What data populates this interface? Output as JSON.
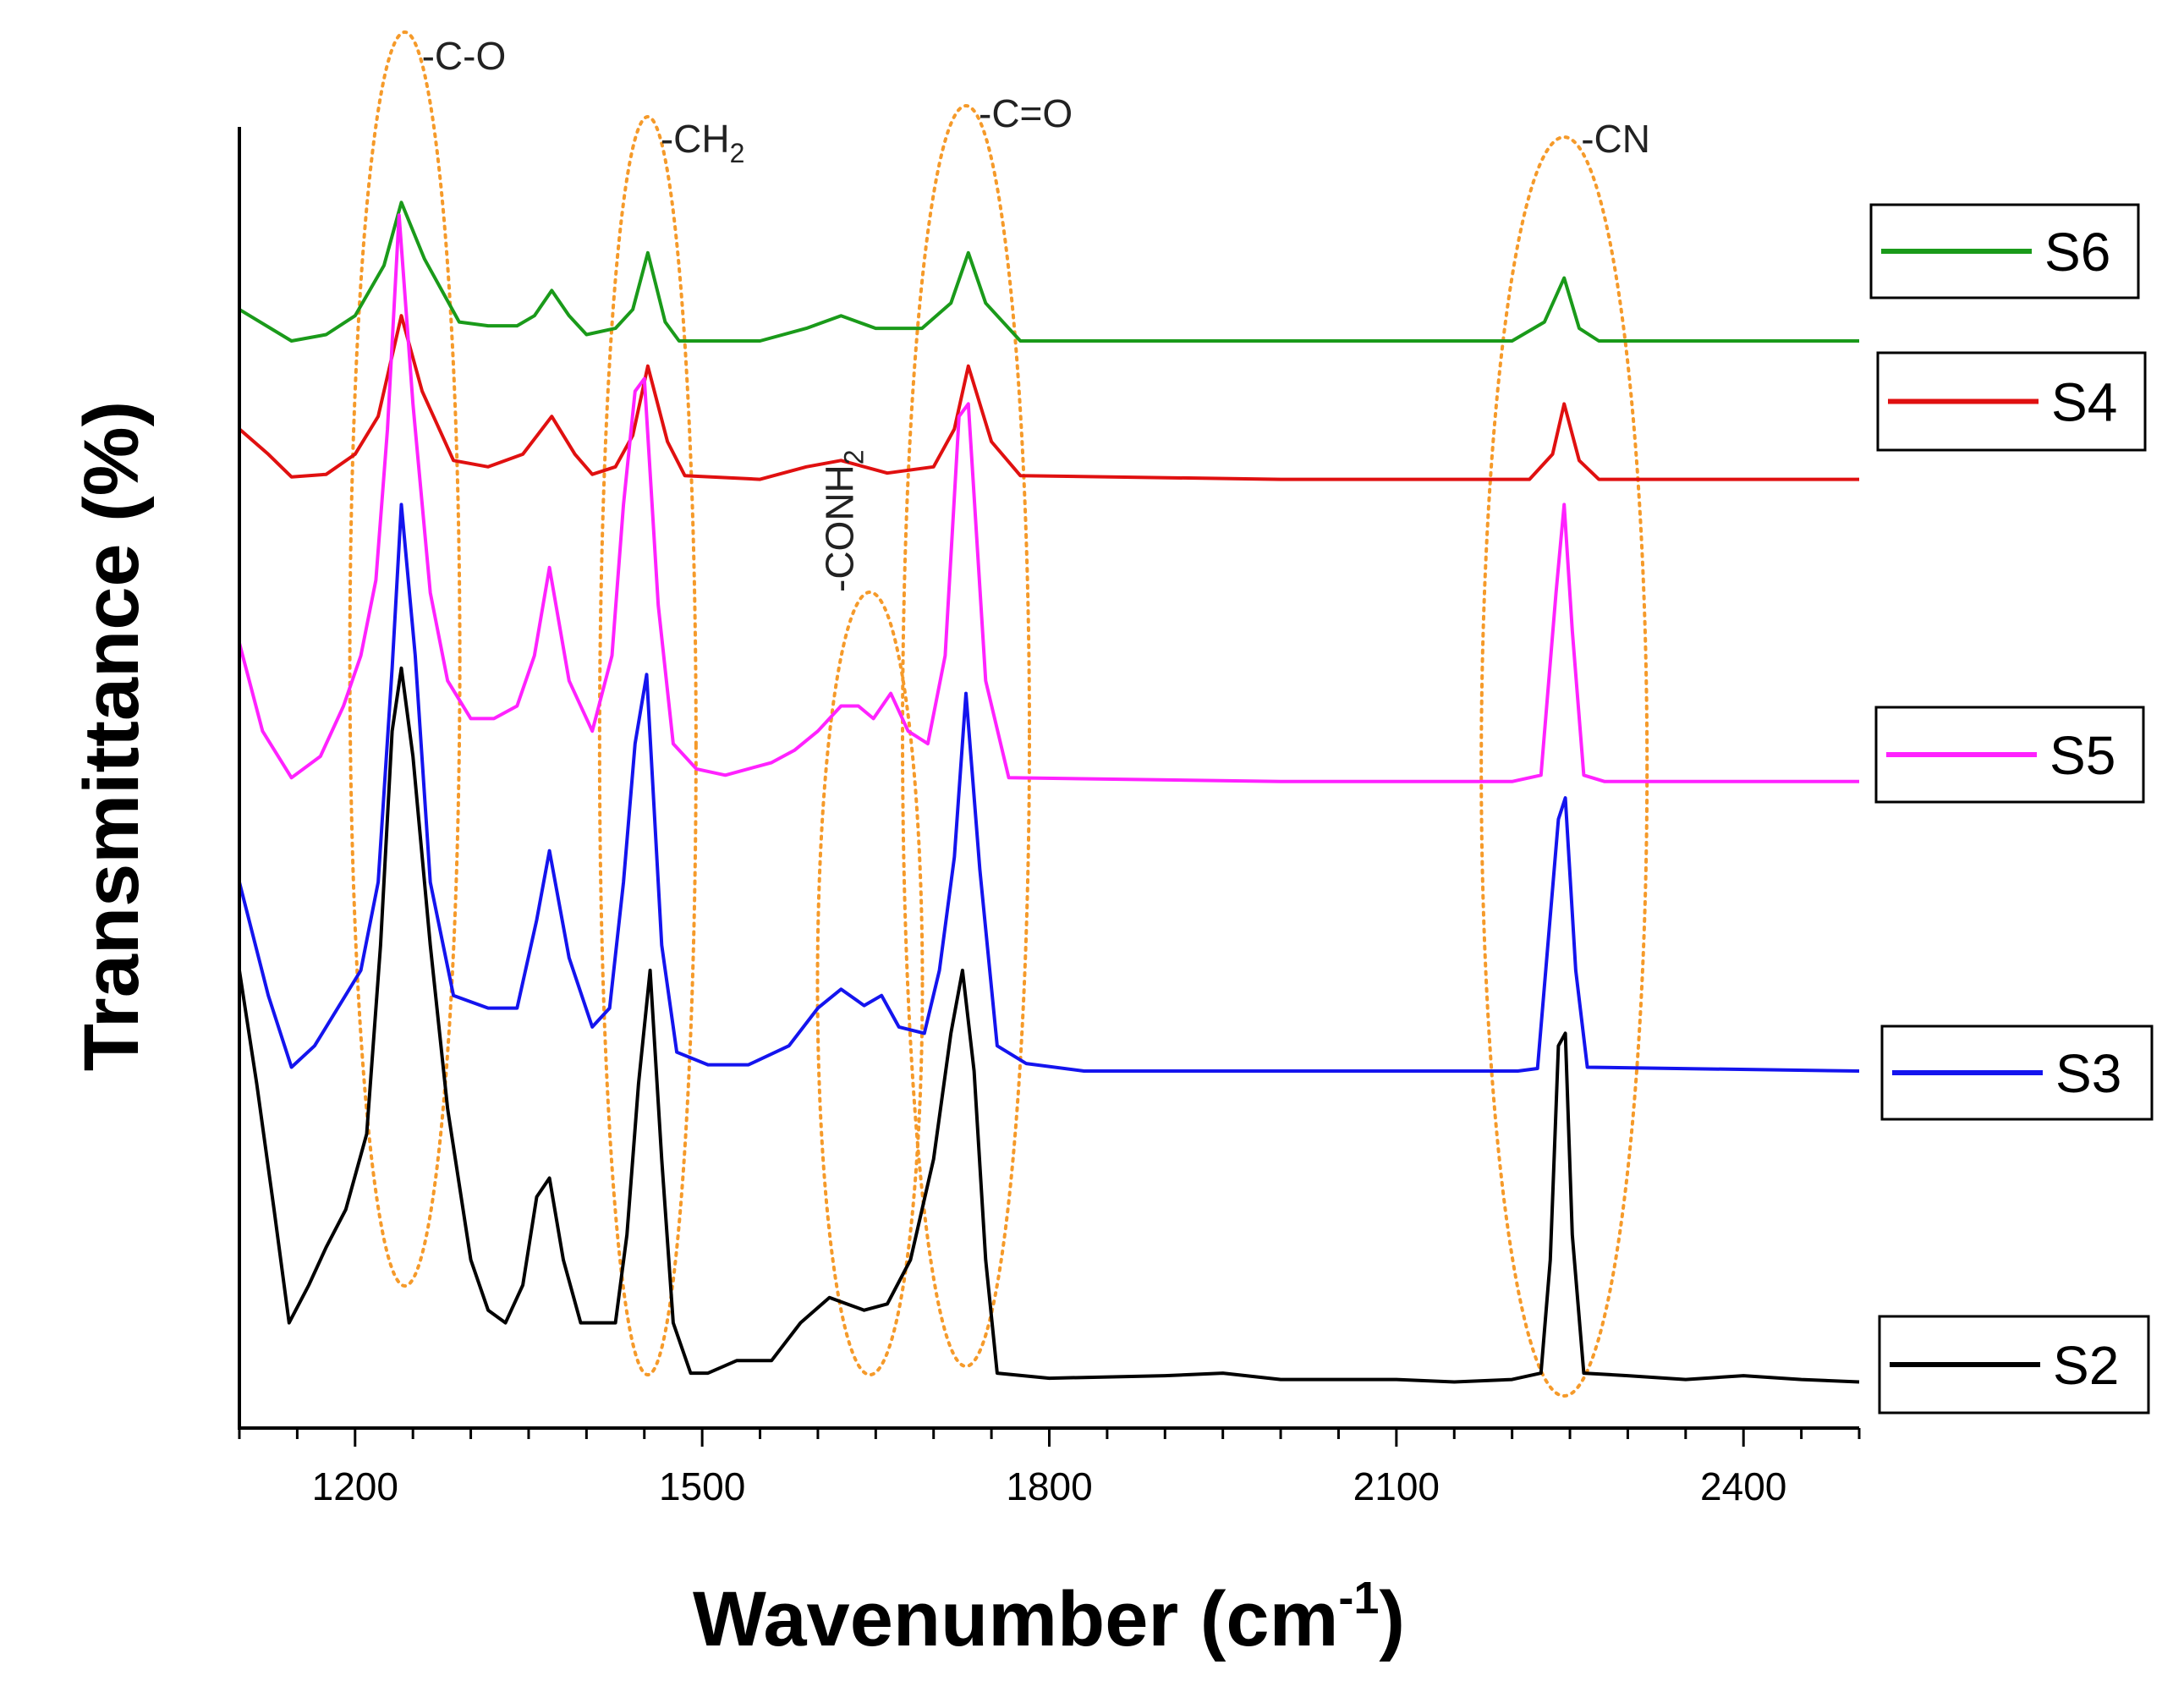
{
  "chart_data": {
    "type": "line",
    "title": "",
    "xlabel": "Wavenumber (cm",
    "xlabel_sup": "-1",
    "xlabel_close": ")",
    "ylabel": "Transmittance (%)",
    "xlim": [
      1100,
      2500
    ],
    "ylim": [
      0,
      100
    ],
    "x_ticks": [
      1200,
      1500,
      1800,
      2100,
      2400
    ],
    "y_ticks_shown": false,
    "legend_placement": "right",
    "series": [
      {
        "name": "S6",
        "color": "#1a9a1a",
        "offset": 83,
        "baseline": 0,
        "points": [
          [
            1100,
            2.5
          ],
          [
            1145,
            0
          ],
          [
            1175,
            0.5
          ],
          [
            1200,
            2
          ],
          [
            1225,
            6
          ],
          [
            1240,
            11
          ],
          [
            1260,
            6.5
          ],
          [
            1290,
            1.5
          ],
          [
            1315,
            1.2
          ],
          [
            1340,
            1.2
          ],
          [
            1355,
            2
          ],
          [
            1370,
            4
          ],
          [
            1385,
            2
          ],
          [
            1400,
            0.5
          ],
          [
            1425,
            1
          ],
          [
            1440,
            2.5
          ],
          [
            1453,
            7
          ],
          [
            1468,
            1.5
          ],
          [
            1480,
            0
          ],
          [
            1550,
            0
          ],
          [
            1590,
            1
          ],
          [
            1620,
            2
          ],
          [
            1650,
            1
          ],
          [
            1690,
            1
          ],
          [
            1715,
            3
          ],
          [
            1730,
            7
          ],
          [
            1745,
            3
          ],
          [
            1775,
            0
          ],
          [
            2000,
            0
          ],
          [
            2200,
            0
          ],
          [
            2228,
            1.5
          ],
          [
            2245,
            5
          ],
          [
            2258,
            1
          ],
          [
            2275,
            0
          ],
          [
            2500,
            0
          ]
        ]
      },
      {
        "name": "S4",
        "color": "#e01010",
        "offset": 72,
        "baseline": 0,
        "points": [
          [
            1100,
            4
          ],
          [
            1125,
            2
          ],
          [
            1145,
            0.2
          ],
          [
            1175,
            0.4
          ],
          [
            1200,
            2
          ],
          [
            1220,
            5
          ],
          [
            1240,
            13
          ],
          [
            1258,
            7
          ],
          [
            1285,
            1.5
          ],
          [
            1315,
            1
          ],
          [
            1345,
            2
          ],
          [
            1370,
            5
          ],
          [
            1390,
            2
          ],
          [
            1405,
            0.4
          ],
          [
            1425,
            1
          ],
          [
            1440,
            3.5
          ],
          [
            1453,
            9
          ],
          [
            1470,
            3
          ],
          [
            1485,
            0.3
          ],
          [
            1550,
            0
          ],
          [
            1590,
            1
          ],
          [
            1620,
            1.5
          ],
          [
            1660,
            0.5
          ],
          [
            1700,
            1
          ],
          [
            1718,
            4
          ],
          [
            1730,
            9
          ],
          [
            1750,
            3
          ],
          [
            1775,
            0.3
          ],
          [
            2000,
            0
          ],
          [
            2215,
            0
          ],
          [
            2235,
            2
          ],
          [
            2245,
            6
          ],
          [
            2258,
            1.5
          ],
          [
            2275,
            0
          ],
          [
            2500,
            0
          ]
        ]
      },
      {
        "name": "S5",
        "color": "#ff22ff",
        "offset": 48,
        "baseline": 0,
        "points": [
          [
            1100,
            11
          ],
          [
            1120,
            4
          ],
          [
            1145,
            0.3
          ],
          [
            1170,
            2
          ],
          [
            1190,
            6
          ],
          [
            1205,
            10
          ],
          [
            1218,
            16
          ],
          [
            1228,
            28
          ],
          [
            1238,
            45
          ],
          [
            1250,
            30
          ],
          [
            1265,
            15
          ],
          [
            1280,
            8
          ],
          [
            1300,
            5
          ],
          [
            1320,
            5
          ],
          [
            1340,
            6
          ],
          [
            1355,
            10
          ],
          [
            1368,
            17
          ],
          [
            1385,
            8
          ],
          [
            1405,
            4
          ],
          [
            1422,
            10
          ],
          [
            1432,
            22
          ],
          [
            1442,
            31
          ],
          [
            1450,
            32
          ],
          [
            1462,
            14
          ],
          [
            1475,
            3
          ],
          [
            1495,
            1
          ],
          [
            1520,
            0.5
          ],
          [
            1560,
            1.5
          ],
          [
            1580,
            2.5
          ],
          [
            1600,
            4
          ],
          [
            1620,
            6
          ],
          [
            1635,
            6
          ],
          [
            1648,
            5
          ],
          [
            1663,
            7
          ],
          [
            1678,
            4
          ],
          [
            1695,
            3
          ],
          [
            1710,
            10
          ],
          [
            1722,
            29
          ],
          [
            1730,
            30
          ],
          [
            1745,
            8
          ],
          [
            1765,
            0.3
          ],
          [
            2000,
            0
          ],
          [
            2200,
            0
          ],
          [
            2225,
            0.5
          ],
          [
            2238,
            15
          ],
          [
            2245,
            22
          ],
          [
            2252,
            12
          ],
          [
            2262,
            0.5
          ],
          [
            2280,
            0
          ],
          [
            2500,
            0
          ]
        ]
      },
      {
        "name": "S3",
        "color": "#1414ee",
        "offset": 25,
        "baseline": 0,
        "points": [
          [
            1100,
            15
          ],
          [
            1125,
            6
          ],
          [
            1145,
            0.3
          ],
          [
            1165,
            2
          ],
          [
            1185,
            5
          ],
          [
            1205,
            8
          ],
          [
            1220,
            15
          ],
          [
            1232,
            32
          ],
          [
            1240,
            45
          ],
          [
            1252,
            33
          ],
          [
            1265,
            15
          ],
          [
            1285,
            6
          ],
          [
            1315,
            5
          ],
          [
            1340,
            5
          ],
          [
            1357,
            12
          ],
          [
            1368,
            17.5
          ],
          [
            1385,
            9
          ],
          [
            1405,
            3.5
          ],
          [
            1420,
            5
          ],
          [
            1432,
            15
          ],
          [
            1442,
            26
          ],
          [
            1452,
            31.5
          ],
          [
            1465,
            10
          ],
          [
            1478,
            1.5
          ],
          [
            1505,
            0.5
          ],
          [
            1540,
            0.5
          ],
          [
            1575,
            2
          ],
          [
            1600,
            5
          ],
          [
            1620,
            6.5
          ],
          [
            1640,
            5.2
          ],
          [
            1655,
            6
          ],
          [
            1670,
            3.5
          ],
          [
            1692,
            3
          ],
          [
            1705,
            8
          ],
          [
            1718,
            17
          ],
          [
            1728,
            30
          ],
          [
            1740,
            16
          ],
          [
            1755,
            2
          ],
          [
            1780,
            0.6
          ],
          [
            1830,
            0
          ],
          [
            2000,
            0
          ],
          [
            2205,
            0
          ],
          [
            2222,
            0.2
          ],
          [
            2240,
            20
          ],
          [
            2246,
            21.7
          ],
          [
            2255,
            8
          ],
          [
            2265,
            0.3
          ],
          [
            2500,
            0
          ]
        ]
      },
      {
        "name": "S2",
        "color": "#000000",
        "offset": 0,
        "baseline": 0,
        "points": [
          [
            1100,
            33
          ],
          [
            1115,
            24
          ],
          [
            1130,
            14
          ],
          [
            1143,
            5
          ],
          [
            1160,
            8
          ],
          [
            1175,
            11
          ],
          [
            1192,
            14
          ],
          [
            1210,
            20
          ],
          [
            1222,
            35
          ],
          [
            1232,
            52
          ],
          [
            1240,
            57
          ],
          [
            1250,
            50
          ],
          [
            1265,
            35
          ],
          [
            1280,
            22
          ],
          [
            1300,
            10
          ],
          [
            1315,
            6
          ],
          [
            1330,
            5
          ],
          [
            1345,
            8
          ],
          [
            1357,
            15
          ],
          [
            1368,
            16.5
          ],
          [
            1380,
            10
          ],
          [
            1395,
            5
          ],
          [
            1410,
            5
          ],
          [
            1425,
            5
          ],
          [
            1435,
            12
          ],
          [
            1445,
            24
          ],
          [
            1455,
            33
          ],
          [
            1465,
            18
          ],
          [
            1475,
            5
          ],
          [
            1490,
            1
          ],
          [
            1505,
            1
          ],
          [
            1530,
            2
          ],
          [
            1560,
            2
          ],
          [
            1585,
            5
          ],
          [
            1610,
            7
          ],
          [
            1625,
            6.5
          ],
          [
            1640,
            6
          ],
          [
            1660,
            6.5
          ],
          [
            1680,
            10
          ],
          [
            1700,
            18
          ],
          [
            1715,
            28
          ],
          [
            1725,
            33
          ],
          [
            1735,
            25
          ],
          [
            1745,
            10
          ],
          [
            1755,
            1
          ],
          [
            1800,
            0.6
          ],
          [
            1900,
            0.8
          ],
          [
            1950,
            1
          ],
          [
            2000,
            0.5
          ],
          [
            2100,
            0.5
          ],
          [
            2150,
            0.3
          ],
          [
            2200,
            0.5
          ],
          [
            2225,
            1
          ],
          [
            2233,
            10
          ],
          [
            2240,
            27
          ],
          [
            2246,
            28
          ],
          [
            2252,
            12
          ],
          [
            2262,
            1
          ],
          [
            2300,
            0.8
          ],
          [
            2350,
            0.5
          ],
          [
            2400,
            0.8
          ],
          [
            2450,
            0.5
          ],
          [
            2500,
            0.3
          ]
        ]
      }
    ],
    "annotations": [
      {
        "label": "-C-O",
        "x": 1243
      },
      {
        "label": "-CH",
        "sub": "2",
        "x": 1453
      },
      {
        "label": "-CONH",
        "sub": "2",
        "x": 1645,
        "rotated": true
      },
      {
        "label": "-C=O",
        "x": 1728
      },
      {
        "label": "-CN",
        "x": 2245
      }
    ],
    "annotation_color": "#f59a2a"
  }
}
